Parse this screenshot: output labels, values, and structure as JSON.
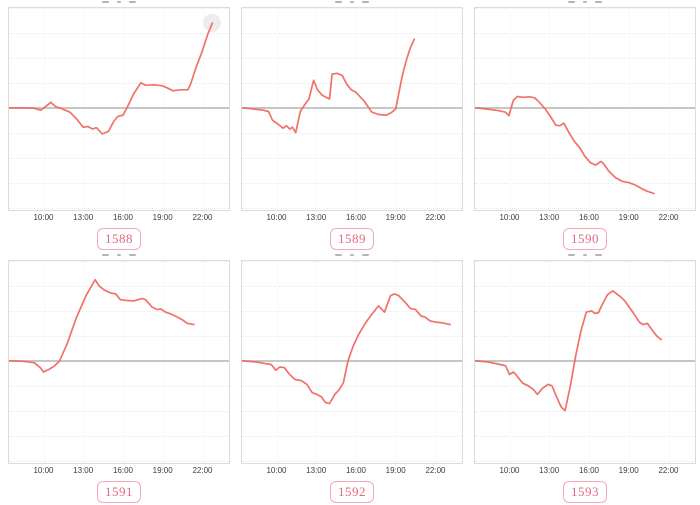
{
  "colors": {
    "background": "#ffffff",
    "line": "#f0655e",
    "zero_line": "#c6c6c6",
    "h_grid": "#ebebeb",
    "v_grid": "#f3f3f3",
    "panel_border": "#dcdcdc",
    "tick_label": "#3d3d3d",
    "badge_text": "#e4697f",
    "badge_border": "#f5a8bd",
    "end_marker_fill": "#ededed"
  },
  "chart_meta": {
    "layout": "2 rows x 3 columns of sparkline-style line charts",
    "y_axis_labels_visible": false,
    "y_unit_note": "y values expressed in units of one horizontal gridline spacing relative to the solid gray zero line",
    "titles_note": "chart titles are cropped off at the top edge; only tiny pixel fragments visible"
  },
  "chart_data": [
    {
      "type": "line",
      "label": "1588",
      "x_ticks": [
        "10:00",
        "13:00",
        "16:00",
        "19:00",
        "22:00"
      ],
      "x_tick_hours": [
        10,
        13,
        16,
        19,
        22
      ],
      "x_range_hours": [
        7.4,
        24.0
      ],
      "ylim_grid_units": [
        -4.1,
        4.0
      ],
      "zero_line": true,
      "end_marker": true,
      "series": [
        {
          "name": "value",
          "x_hours": [
            7.4,
            8.5,
            9.3,
            9.8,
            10.1,
            10.55,
            10.9,
            11.3,
            12.0,
            12.5,
            13.0,
            13.35,
            13.7,
            14.0,
            14.45,
            14.9,
            15.3,
            15.6,
            16.0,
            16.35,
            16.8,
            17.35,
            17.7,
            18.3,
            19.0,
            19.4,
            19.8,
            20.3,
            20.9,
            21.1,
            21.5,
            22.0,
            22.4,
            22.75
          ],
          "y_grid_units": [
            0,
            0,
            -0.02,
            -0.1,
            0.02,
            0.22,
            0.05,
            -0.02,
            -0.18,
            -0.45,
            -0.78,
            -0.75,
            -0.85,
            -0.8,
            -1.05,
            -0.95,
            -0.55,
            -0.35,
            -0.3,
            0.05,
            0.55,
            1.0,
            0.9,
            0.92,
            0.88,
            0.78,
            0.68,
            0.72,
            0.72,
            0.95,
            1.6,
            2.3,
            2.95,
            3.4
          ]
        }
      ]
    },
    {
      "type": "line",
      "label": "1589",
      "x_ticks": [
        "10:00",
        "13:00",
        "16:00",
        "19:00",
        "22:00"
      ],
      "x_tick_hours": [
        10,
        13,
        16,
        19,
        22
      ],
      "x_range_hours": [
        7.4,
        24.0
      ],
      "ylim_grid_units": [
        -4.1,
        4.0
      ],
      "zero_line": true,
      "end_marker": false,
      "series": [
        {
          "name": "value",
          "x_hours": [
            7.4,
            8.3,
            9.0,
            9.4,
            9.7,
            10.1,
            10.5,
            10.75,
            11.0,
            11.2,
            11.45,
            11.8,
            12.1,
            12.45,
            12.8,
            13.1,
            13.45,
            13.75,
            14.0,
            14.2,
            14.55,
            14.95,
            15.3,
            15.65,
            16.0,
            16.6,
            17.2,
            17.7,
            18.3,
            18.7,
            19.0,
            19.2,
            19.5,
            19.8,
            20.1,
            20.4
          ],
          "y_grid_units": [
            0,
            -0.05,
            -0.1,
            -0.15,
            -0.5,
            -0.65,
            -0.82,
            -0.72,
            -0.85,
            -0.78,
            -1.0,
            -0.15,
            0.1,
            0.35,
            1.1,
            0.72,
            0.5,
            0.42,
            0.35,
            1.35,
            1.38,
            1.3,
            0.95,
            0.72,
            0.62,
            0.28,
            -0.18,
            -0.27,
            -0.3,
            -0.18,
            -0.05,
            0.5,
            1.3,
            1.9,
            2.4,
            2.75
          ]
        }
      ]
    },
    {
      "type": "line",
      "label": "1590",
      "x_ticks": [
        "10:00",
        "13:00",
        "16:00",
        "19:00",
        "22:00"
      ],
      "x_tick_hours": [
        10,
        13,
        16,
        19,
        22
      ],
      "x_range_hours": [
        7.4,
        24.0
      ],
      "ylim_grid_units": [
        -4.1,
        4.0
      ],
      "zero_line": true,
      "end_marker": false,
      "series": [
        {
          "name": "value",
          "x_hours": [
            7.4,
            8.3,
            9.2,
            9.7,
            9.95,
            10.3,
            10.6,
            11.0,
            11.5,
            11.9,
            12.2,
            12.7,
            13.1,
            13.5,
            13.8,
            14.1,
            14.5,
            14.9,
            15.3,
            15.7,
            16.1,
            16.5,
            16.9,
            17.1,
            17.5,
            18.0,
            18.5,
            19.0,
            19.5,
            20.0,
            20.4,
            20.9
          ],
          "y_grid_units": [
            0,
            -0.05,
            -0.12,
            -0.18,
            -0.32,
            0.3,
            0.45,
            0.42,
            0.44,
            0.4,
            0.25,
            -0.05,
            -0.35,
            -0.7,
            -0.72,
            -0.62,
            -1.0,
            -1.35,
            -1.6,
            -1.95,
            -2.2,
            -2.3,
            -2.15,
            -2.25,
            -2.55,
            -2.8,
            -2.95,
            -3.0,
            -3.1,
            -3.25,
            -3.35,
            -3.44
          ]
        }
      ]
    },
    {
      "type": "line",
      "label": "1591",
      "x_ticks": [
        "10:00",
        "13:00",
        "16:00",
        "19:00",
        "22:00"
      ],
      "x_tick_hours": [
        10,
        13,
        16,
        19,
        22
      ],
      "x_range_hours": [
        7.4,
        24.0
      ],
      "ylim_grid_units": [
        -4.1,
        4.0
      ],
      "zero_line": true,
      "end_marker": false,
      "series": [
        {
          "name": "value",
          "x_hours": [
            7.4,
            8.5,
            9.3,
            9.8,
            10.0,
            10.4,
            10.8,
            11.0,
            11.2,
            11.8,
            12.5,
            13.2,
            13.9,
            14.2,
            14.55,
            15.05,
            15.45,
            15.8,
            16.2,
            16.8,
            17.45,
            17.7,
            18.2,
            18.6,
            18.85,
            19.2,
            19.6,
            20.0,
            20.45,
            20.85,
            21.35
          ],
          "y_grid_units": [
            0,
            -0.02,
            -0.08,
            -0.3,
            -0.45,
            -0.35,
            -0.22,
            -0.12,
            -0.02,
            0.7,
            1.75,
            2.6,
            3.25,
            3.0,
            2.85,
            2.72,
            2.68,
            2.45,
            2.42,
            2.4,
            2.5,
            2.45,
            2.15,
            2.05,
            2.08,
            1.95,
            1.88,
            1.78,
            1.65,
            1.5,
            1.45
          ]
        }
      ]
    },
    {
      "type": "line",
      "label": "1592",
      "x_ticks": [
        "10:00",
        "13:00",
        "16:00",
        "19:00",
        "22:00"
      ],
      "x_tick_hours": [
        10,
        13,
        16,
        19,
        22
      ],
      "x_range_hours": [
        7.4,
        24.0
      ],
      "ylim_grid_units": [
        -4.1,
        4.0
      ],
      "zero_line": true,
      "end_marker": false,
      "series": [
        {
          "name": "value",
          "x_hours": [
            7.4,
            8.5,
            9.2,
            9.6,
            9.95,
            10.25,
            10.6,
            11.0,
            11.4,
            11.9,
            12.3,
            12.7,
            13.05,
            13.4,
            13.7,
            14.0,
            14.4,
            14.75,
            15.05,
            15.4,
            15.8,
            16.2,
            16.7,
            17.1,
            17.7,
            18.15,
            18.6,
            18.9,
            19.2,
            19.7,
            20.1,
            20.5,
            20.9,
            21.2,
            21.6,
            22.0,
            22.5,
            23.1
          ],
          "y_grid_units": [
            0,
            -0.05,
            -0.12,
            -0.15,
            -0.38,
            -0.25,
            -0.28,
            -0.55,
            -0.75,
            -0.8,
            -0.95,
            -1.28,
            -1.35,
            -1.45,
            -1.68,
            -1.72,
            -1.35,
            -1.15,
            -0.88,
            0.0,
            0.6,
            1.05,
            1.5,
            1.8,
            2.2,
            1.95,
            2.6,
            2.68,
            2.62,
            2.35,
            2.1,
            2.05,
            1.8,
            1.75,
            1.6,
            1.55,
            1.52,
            1.45
          ]
        }
      ]
    },
    {
      "type": "line",
      "label": "1593",
      "x_ticks": [
        "10:00",
        "13:00",
        "16:00",
        "19:00",
        "22:00"
      ],
      "x_tick_hours": [
        10,
        13,
        16,
        19,
        22
      ],
      "x_range_hours": [
        7.4,
        24.0
      ],
      "ylim_grid_units": [
        -4.1,
        4.0
      ],
      "zero_line": true,
      "end_marker": false,
      "series": [
        {
          "name": "value",
          "x_hours": [
            7.4,
            8.4,
            9.3,
            9.7,
            10.0,
            10.3,
            10.55,
            11.0,
            11.4,
            11.8,
            12.1,
            12.5,
            12.9,
            13.2,
            13.6,
            13.9,
            14.2,
            14.6,
            15.0,
            15.4,
            15.8,
            16.2,
            16.45,
            16.7,
            17.0,
            17.4,
            17.8,
            18.3,
            18.7,
            19.1,
            19.5,
            19.8,
            20.1,
            20.4,
            20.8,
            21.1,
            21.45
          ],
          "y_grid_units": [
            0,
            -0.05,
            -0.15,
            -0.2,
            -0.55,
            -0.45,
            -0.6,
            -0.9,
            -1.0,
            -1.15,
            -1.35,
            -1.1,
            -0.95,
            -1.0,
            -1.5,
            -1.85,
            -2.0,
            -1.0,
            0.2,
            1.2,
            1.95,
            2.0,
            1.9,
            1.92,
            2.25,
            2.65,
            2.8,
            2.6,
            2.4,
            2.1,
            1.8,
            1.55,
            1.45,
            1.5,
            1.2,
            1.0,
            0.85
          ]
        }
      ]
    }
  ]
}
